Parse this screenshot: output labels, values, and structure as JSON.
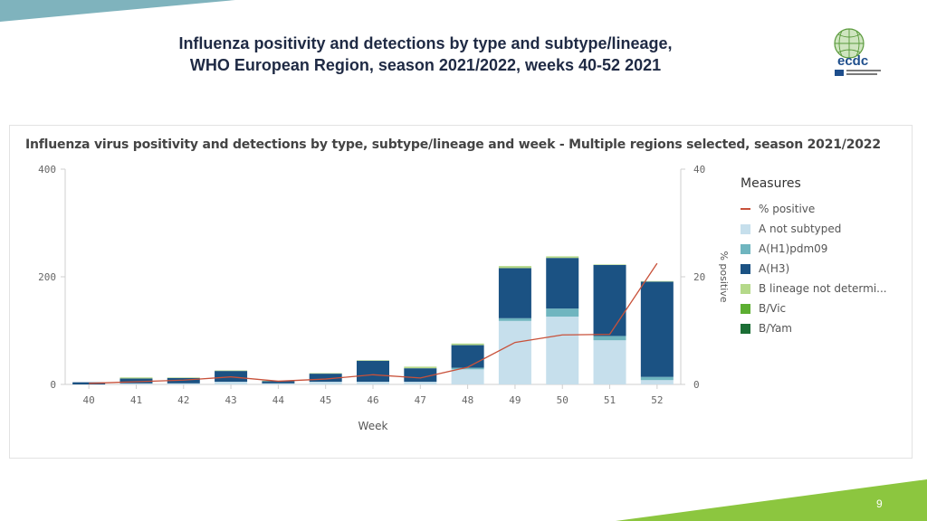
{
  "slide": {
    "title_line1": "Influenza positivity and detections by type and subtype/lineage,",
    "title_line2": "WHO European Region, season 2021/2022, weeks 40-52 2021",
    "page_number": "9",
    "logo_text": "ecdc"
  },
  "colors": {
    "top_band": "#7fb3bd",
    "bottom_band": "#8cc63f",
    "A not subtyped": "#c6dfec",
    "A(H1)pdm09": "#6fb5bf",
    "A(H3)": "#1b5283",
    "B lineage not determined": "#b5d98a",
    "B/Vic": "#5cae32",
    "B/Yam": "#1b6e35",
    "% positive": "#c8513a"
  },
  "chart_data": {
    "type": "bar",
    "title": "Influenza virus positivity and detections by type, subtype/lineage and week - Multiple regions selected, season 2021/2022",
    "xlabel": "Week",
    "ylabel": "",
    "y2label": "% positive",
    "categories": [
      "40",
      "41",
      "42",
      "43",
      "44",
      "45",
      "46",
      "47",
      "48",
      "49",
      "50",
      "51",
      "52"
    ],
    "ylim": [
      0,
      400
    ],
    "y2lim": [
      0,
      40
    ],
    "yticks": [
      0,
      200,
      400
    ],
    "y2ticks": [
      0,
      20,
      40
    ],
    "legend_title": "Measures",
    "legend_position": "right",
    "grid": false,
    "stacked": true,
    "series": [
      {
        "name": "A not subtyped",
        "values": [
          0,
          2,
          2,
          5,
          2,
          5,
          5,
          5,
          28,
          118,
          126,
          82,
          8
        ]
      },
      {
        "name": "A(H1)pdm09",
        "values": [
          0,
          0,
          0,
          0,
          0,
          0,
          0,
          0,
          3,
          5,
          15,
          8,
          6
        ]
      },
      {
        "name": "A(H3)",
        "values": [
          4,
          9,
          10,
          20,
          4,
          15,
          39,
          25,
          42,
          93,
          94,
          132,
          177
        ]
      },
      {
        "name": "B lineage not determined",
        "values": [
          0,
          2,
          1,
          1,
          1,
          1,
          1,
          3,
          3,
          4,
          3,
          1,
          1
        ]
      },
      {
        "name": "B/Vic",
        "values": [
          0,
          0,
          0,
          0,
          0,
          0,
          0,
          0,
          0,
          0,
          0,
          0,
          0
        ]
      },
      {
        "name": "B/Yam",
        "values": [
          0,
          0,
          0,
          0,
          0,
          0,
          0,
          0,
          0,
          0,
          0,
          0,
          0
        ]
      }
    ],
    "line_series": {
      "name": "% positive",
      "axis": "right",
      "values": [
        0.2,
        0.5,
        0.8,
        1.4,
        0.6,
        1.0,
        1.8,
        1.2,
        3.2,
        7.8,
        9.2,
        9.3,
        22.5
      ]
    },
    "legend_labels": [
      "% positive",
      "A not subtyped",
      "A(H1)pdm09",
      "A(H3)",
      "B lineage not determi...",
      "B/Vic",
      "B/Yam"
    ]
  }
}
